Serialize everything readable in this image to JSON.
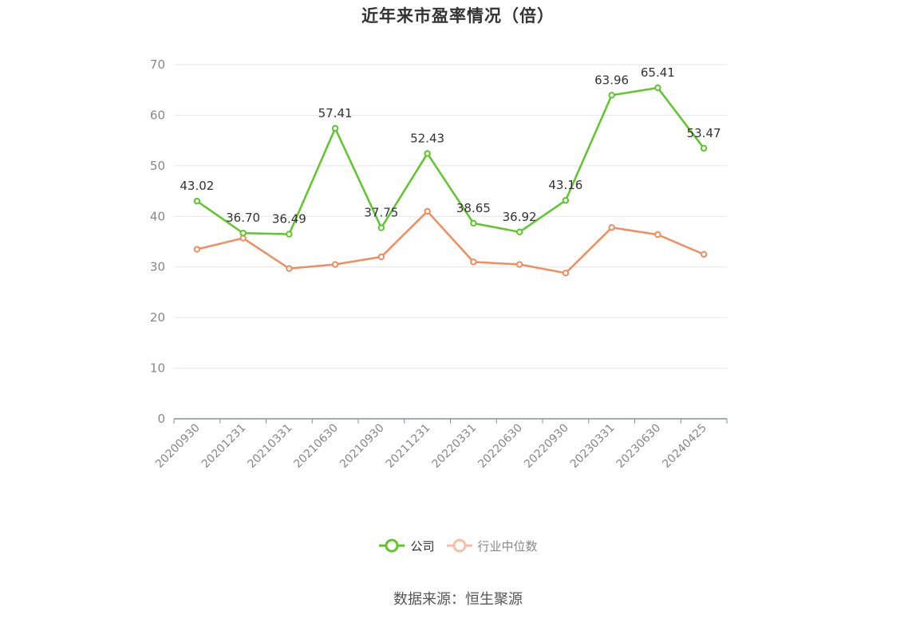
{
  "chart_data": {
    "type": "line",
    "title": "近年来市盈率情况（倍）",
    "categories": [
      "20200930",
      "20201231",
      "20210331",
      "20210630",
      "20210930",
      "20211231",
      "20220331",
      "20220630",
      "20220930",
      "20230331",
      "20230630",
      "20240425"
    ],
    "series": [
      {
        "name": "公司",
        "color": "#5ec62a",
        "values": [
          43.02,
          36.7,
          36.49,
          57.41,
          37.75,
          52.43,
          38.65,
          36.92,
          43.16,
          63.96,
          65.41,
          53.47
        ],
        "labels": [
          "43.02",
          "36.70",
          "36.49",
          "57.41",
          "37.75",
          "52.43",
          "38.65",
          "36.92",
          "43.16",
          "63.96",
          "65.41",
          "53.47"
        ]
      },
      {
        "name": "行业中位数",
        "color": "#f08c5e",
        "legend_color": "#f7bfa6",
        "values": [
          33.5,
          35.7,
          29.7,
          30.5,
          32.0,
          41.0,
          31.0,
          30.5,
          28.8,
          37.8,
          36.4,
          32.5
        ]
      }
    ],
    "ylim": [
      0,
      70
    ],
    "yticks": [
      "0",
      "10",
      "20",
      "30",
      "40",
      "50",
      "60",
      "70"
    ],
    "grid": true,
    "legend_position": "bottom-center",
    "xlabel": "",
    "ylabel": ""
  },
  "source": "数据来源：恒生聚源"
}
